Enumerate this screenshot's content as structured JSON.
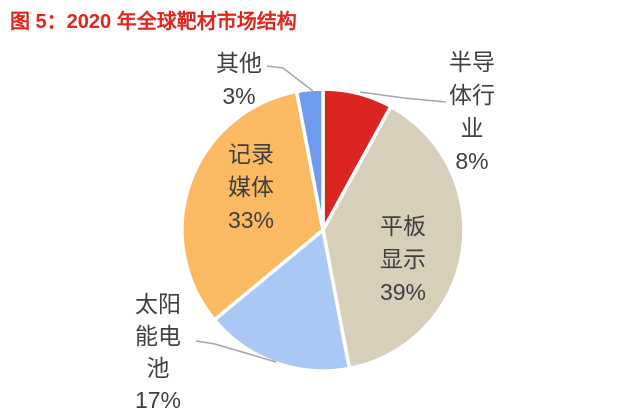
{
  "title": "图 5：2020 年全球靶材市场结构",
  "colors": {
    "title_text": "#E3251C",
    "label_text": "#404040",
    "leader_line": "#A6A6A6",
    "background": "#FFFFFF",
    "slice_border": "#FFFFFF"
  },
  "chart_data": {
    "type": "pie",
    "title": "2020 年全球靶材市场结构",
    "unit": "%",
    "start_angle_deg": 0,
    "direction": "clockwise",
    "legend_position": "none",
    "grid": false,
    "series": [
      {
        "key": "semiconductor",
        "name": "半导体行业",
        "value": 8,
        "pct_label": "8%",
        "color": "#DC2423",
        "label_placement": "outside"
      },
      {
        "key": "flat-panel-display",
        "name": "平板显示",
        "value": 39,
        "pct_label": "39%",
        "color": "#D8CFBA",
        "label_placement": "inside"
      },
      {
        "key": "solar-cell",
        "name": "太阳能电池",
        "value": 17,
        "pct_label": "17%",
        "color": "#A9C8F4",
        "label_placement": "outside"
      },
      {
        "key": "recording-media",
        "name": "记录媒体",
        "value": 33,
        "pct_label": "33%",
        "color": "#FBBA62",
        "label_placement": "inside"
      },
      {
        "key": "other",
        "name": "其他",
        "value": 3,
        "pct_label": "3%",
        "color": "#6F9BEE",
        "label_placement": "outside"
      }
    ]
  }
}
